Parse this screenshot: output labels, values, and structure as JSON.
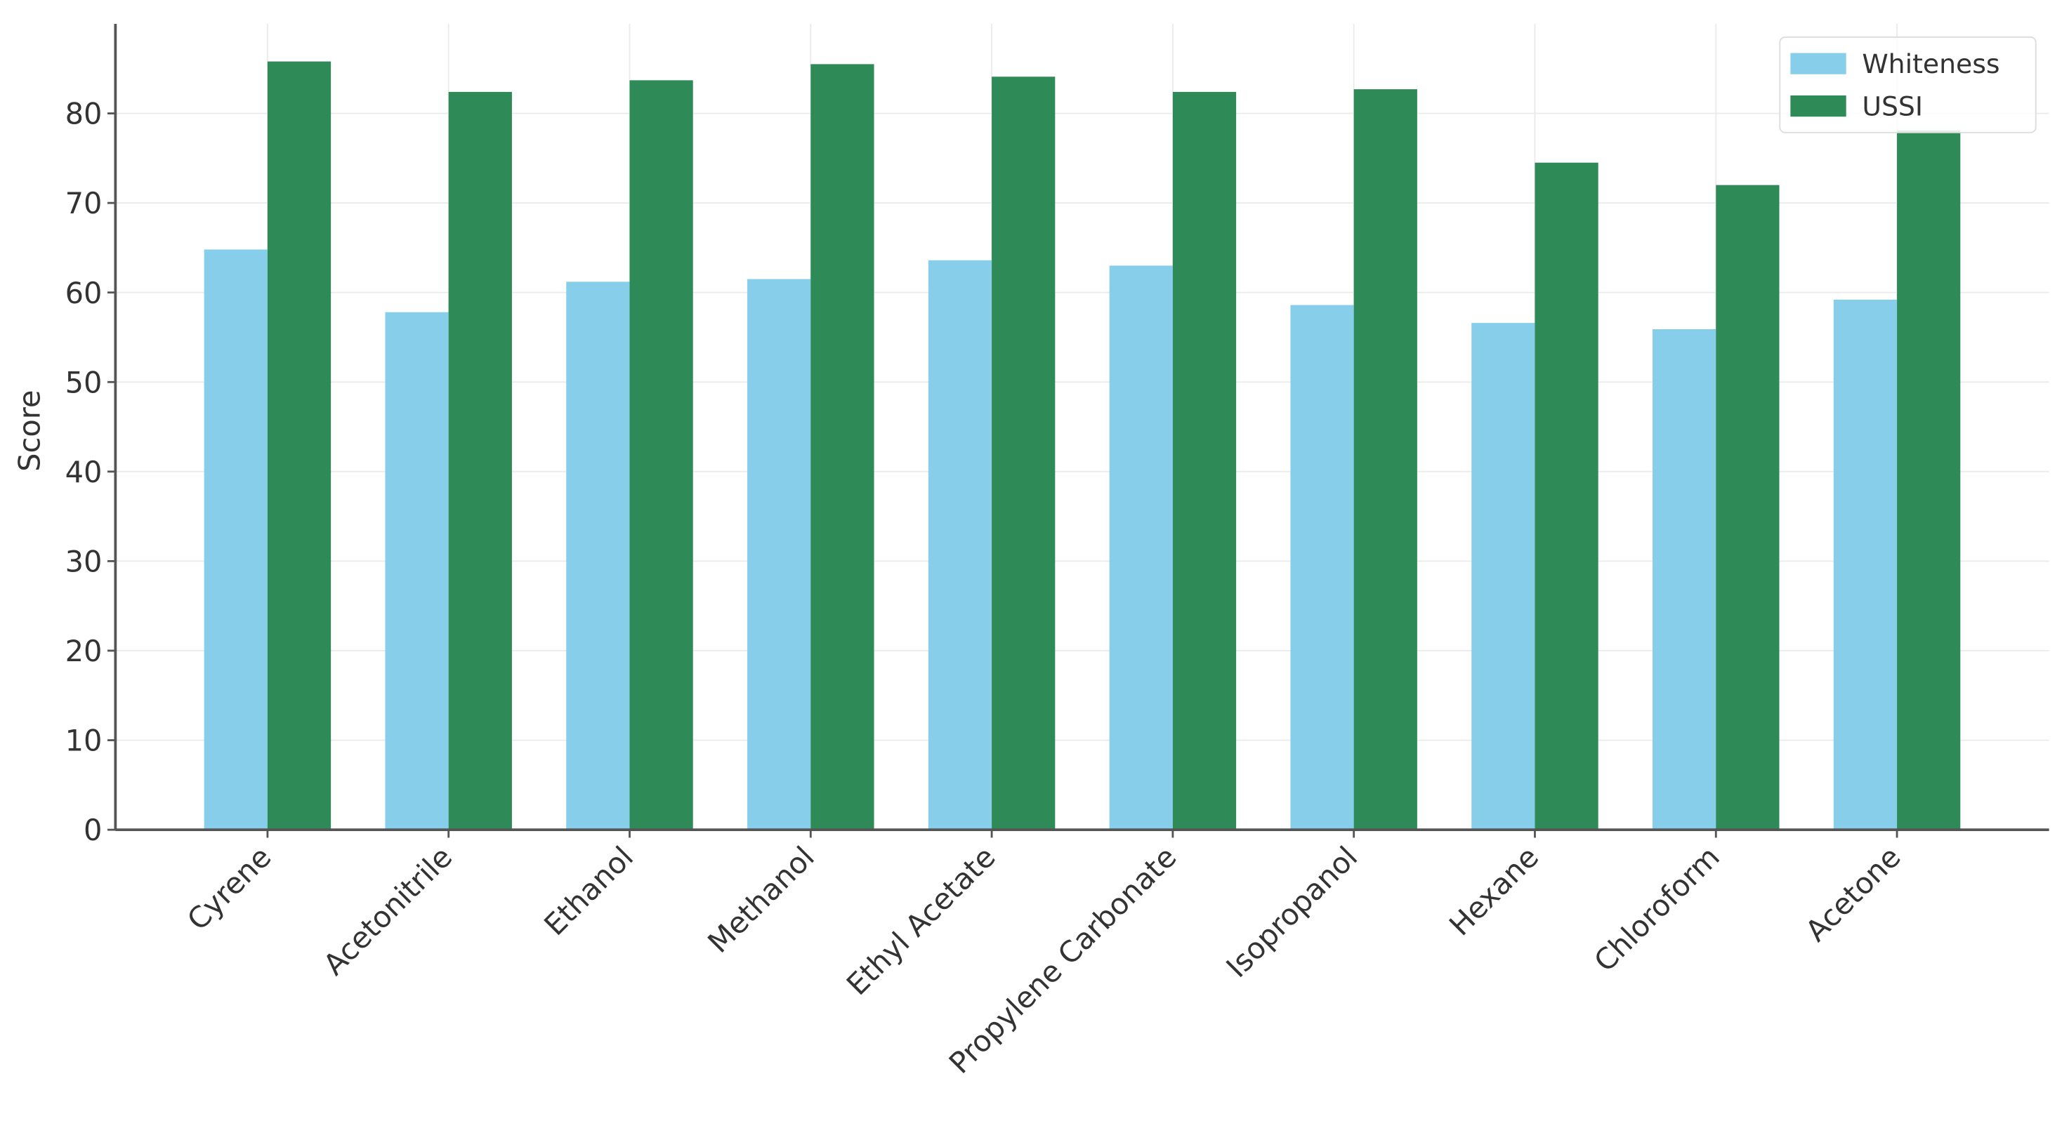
{
  "chart_data": {
    "type": "bar",
    "y_label": "Score",
    "categories": [
      "Cyrene",
      "Acetonitrile",
      "Ethanol",
      "Methanol",
      "Ethyl Acetate",
      "Propylene Carbonate",
      "Isopropanol",
      "Hexane",
      "Chloroform",
      "Acetone"
    ],
    "series": [
      {
        "name": "Whiteness",
        "color": "#87ceeb",
        "values": [
          64.8,
          57.8,
          61.2,
          61.5,
          63.6,
          63.0,
          58.6,
          56.6,
          55.9,
          59.2
        ]
      },
      {
        "name": "USSI",
        "color": "#2e8b57",
        "values": [
          85.8,
          82.4,
          83.7,
          85.5,
          84.1,
          82.4,
          82.7,
          74.5,
          72.0,
          78.1
        ]
      }
    ],
    "ylim": [
      0,
      90
    ],
    "yticks": [
      0,
      10,
      20,
      30,
      40,
      50,
      60,
      70,
      80
    ],
    "grid": true,
    "legend": "upper right"
  }
}
